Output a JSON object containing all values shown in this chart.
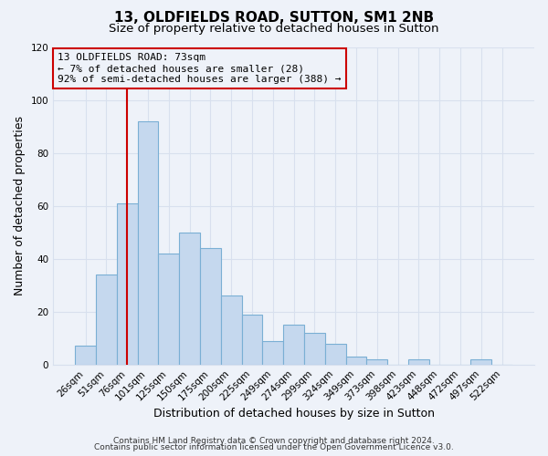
{
  "title_line1": "13, OLDFIELDS ROAD, SUTTON, SM1 2NB",
  "title_line2": "Size of property relative to detached houses in Sutton",
  "xlabel": "Distribution of detached houses by size in Sutton",
  "ylabel": "Number of detached properties",
  "bar_labels": [
    "26sqm",
    "51sqm",
    "76sqm",
    "101sqm",
    "125sqm",
    "150sqm",
    "175sqm",
    "200sqm",
    "225sqm",
    "249sqm",
    "274sqm",
    "299sqm",
    "324sqm",
    "349sqm",
    "373sqm",
    "398sqm",
    "423sqm",
    "448sqm",
    "472sqm",
    "497sqm",
    "522sqm"
  ],
  "bar_values": [
    7,
    34,
    61,
    92,
    42,
    50,
    44,
    26,
    19,
    9,
    15,
    12,
    8,
    3,
    2,
    0,
    2,
    0,
    0,
    2,
    0
  ],
  "bar_color": "#c5d8ee",
  "bar_edge_color": "#7aafd4",
  "vline_x_index": 2,
  "vline_color": "#cc0000",
  "ylim": [
    0,
    120
  ],
  "yticks": [
    0,
    20,
    40,
    60,
    80,
    100,
    120
  ],
  "annotation_text": "13 OLDFIELDS ROAD: 73sqm\n← 7% of detached houses are smaller (28)\n92% of semi-detached houses are larger (388) →",
  "annotation_box_edge": "#cc0000",
  "footer_line1": "Contains HM Land Registry data © Crown copyright and database right 2024.",
  "footer_line2": "Contains public sector information licensed under the Open Government Licence v3.0.",
  "bg_color": "#eef2f9",
  "grid_color": "#d8e0ee",
  "title_fontsize": 11,
  "subtitle_fontsize": 9.5,
  "axis_label_fontsize": 9,
  "tick_fontsize": 7.5,
  "footer_fontsize": 6.5,
  "annotation_fontsize": 8
}
